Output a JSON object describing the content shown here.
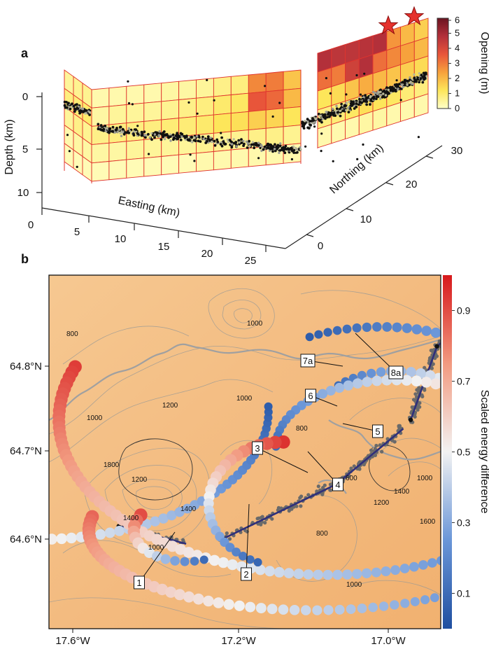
{
  "panels": {
    "a": {
      "letter": "a",
      "depth_label": "Depth (km)",
      "depth_ticks": [
        "0",
        "5",
        "10"
      ],
      "easting_label": "Easting (km)",
      "easting_ticks": [
        "0",
        "5",
        "10",
        "15",
        "20",
        "25"
      ],
      "northing_label": "Northing (km)",
      "northing_ticks": [
        "0",
        "10",
        "20",
        "30"
      ],
      "colorbar": {
        "label": "Opening (m)",
        "ticks": [
          "6",
          "5",
          "4",
          "3",
          "2",
          "1",
          "0"
        ],
        "range": [
          0,
          6
        ],
        "colors": [
          "#ffffc8",
          "#fde65a",
          "#f7a23c",
          "#e8553a",
          "#b3303a",
          "#6b1420"
        ]
      }
    },
    "b": {
      "letter": "b",
      "x_ticks": [
        "17.6°W",
        "17.2°W",
        "17.0°W"
      ],
      "y_ticks": [
        "64.8°N",
        "64.7°N",
        "64.6°N"
      ],
      "colorbar": {
        "label": "Scaled energy difference",
        "ticks": [
          "0.9",
          "0.7",
          "0.5",
          "0.3",
          "0.1"
        ],
        "range": [
          0,
          1
        ],
        "colors": [
          "#1f4fa0",
          "#6a96d8",
          "#f2f2f2",
          "#f29a80",
          "#d7191c"
        ]
      },
      "contour_labels": [
        "800",
        "1000",
        "1000",
        "1200",
        "1000",
        "1800",
        "1200",
        "1400",
        "1400",
        "1000",
        "800",
        "600",
        "1200",
        "1400",
        "1000",
        "1600",
        "800",
        "1000"
      ],
      "callouts": [
        "1",
        "2",
        "3",
        "4",
        "5",
        "6",
        "7a",
        "8a"
      ]
    }
  },
  "chart_data": [
    {
      "type": "heatmap",
      "panel": "a",
      "xlabel": "Easting (km)",
      "ylabel": "Depth (km)",
      "zlabel": "Northing (km)",
      "xlim": [
        0,
        27
      ],
      "zlim": [
        0,
        30
      ],
      "ylim": [
        10,
        0
      ],
      "colorbar_label": "Opening (m)",
      "colorbar_range": [
        0,
        6
      ],
      "segments": [
        {
          "name": "segment-1",
          "rows": [
            [
              0.5,
              0.6,
              0.6
            ],
            [
              0.8,
              0.9,
              1.0
            ],
            [
              0.5,
              0.7,
              0.6
            ],
            [
              0.3,
              0.4,
              0.4
            ],
            [
              0.2,
              0.2,
              0.2
            ]
          ]
        },
        {
          "name": "segment-2",
          "rows": [
            [
              0.3,
              0.3,
              0.3,
              0.3,
              0.4,
              0.4,
              0.5,
              0.7,
              0.8,
              2.8,
              3.0,
              1.8
            ],
            [
              0.4,
              0.5,
              0.5,
              0.5,
              0.6,
              0.7,
              0.8,
              1.0,
              1.1,
              3.6,
              3.3,
              2.0
            ],
            [
              0.7,
              0.8,
              0.8,
              0.8,
              0.9,
              0.9,
              1.0,
              1.2,
              1.3,
              1.6,
              1.5,
              1.2
            ],
            [
              0.4,
              0.4,
              0.5,
              0.5,
              0.5,
              0.5,
              0.6,
              0.6,
              0.6,
              0.7,
              0.7,
              0.6
            ],
            [
              0.2,
              0.2,
              0.2,
              0.2,
              0.2,
              0.2,
              0.3,
              0.3,
              0.3,
              0.3,
              0.3,
              0.3
            ]
          ]
        },
        {
          "name": "segment-3",
          "rows": [
            [
              4.8,
              4.6,
              4.6,
              4.7,
              4.8,
              2.6,
              2.0,
              1.6
            ],
            [
              3.2,
              3.0,
              4.2,
              4.8,
              3.2,
              2.8,
              2.4,
              2.0
            ],
            [
              1.2,
              1.4,
              1.8,
              2.2,
              2.0,
              1.8,
              1.6,
              1.4
            ],
            [
              0.8,
              0.9,
              1.1,
              1.3,
              1.2,
              1.1,
              0.9,
              0.8
            ],
            [
              0.3,
              0.3,
              0.3,
              0.4,
              0.4,
              0.3,
              0.3,
              0.3
            ]
          ]
        }
      ]
    },
    {
      "type": "scatter",
      "panel": "b",
      "x_ticks": [
        "17.6°W",
        "17.2°W",
        "17.0°W"
      ],
      "y_ticks": [
        "64.8°N",
        "64.7°N",
        "64.6°N"
      ],
      "colorbar_label": "Scaled energy difference",
      "colorbar_range": [
        0,
        1
      ],
      "callouts": [
        "1",
        "2",
        "3",
        "4",
        "5",
        "6",
        "7a",
        "8a"
      ],
      "arcs": [
        {
          "cx": -17.47,
          "cy": 64.745,
          "r_lon": 0.31,
          "r_lat": 0.145,
          "a0": 188,
          "a1": 362,
          "e0": 0.96,
          "e1": 0.05
        },
        {
          "cx": -17.08,
          "cy": 64.735,
          "r_lon": 0.36,
          "r_lat": 0.175,
          "a0": 160,
          "a1": 330,
          "e0": 0.93,
          "e1": 0.08
        },
        {
          "cx": -17.01,
          "cy": 64.755,
          "r_lon": 0.19,
          "r_lat": 0.085,
          "a0": 350,
          "a1": 120,
          "e0": 0.55,
          "e1": 0.05
        },
        {
          "cx": -16.99,
          "cy": 64.745,
          "r_lon": 0.1,
          "r_lat": 0.045,
          "a0": 330,
          "a1": 140,
          "e0": 0.85,
          "e1": 0.1
        },
        {
          "cx": -16.99,
          "cy": 64.705,
          "r_lon": 0.16,
          "r_lat": 0.075,
          "a0": 340,
          "a1": 180,
          "e0": 0.9,
          "e1": 0.1
        },
        {
          "cx": -17.14,
          "cy": 64.64,
          "r_lon": 0.1,
          "r_lat": 0.07,
          "a0": 90,
          "a1": 250,
          "e0": 0.95,
          "e1": 0.08
        },
        {
          "cx": -17.27,
          "cy": 64.61,
          "r_lon": 0.07,
          "r_lat": 0.035,
          "a0": 150,
          "a1": 290,
          "e0": 0.9,
          "e1": 0.1
        },
        {
          "cx": -17.1,
          "cy": 64.61,
          "r_lon": 0.3,
          "r_lat": 0.09,
          "a0": 170,
          "a1": 320,
          "e0": 0.85,
          "e1": 0.2
        }
      ],
      "dikes": [
        {
          "from": [
            -17.36,
            64.615
          ],
          "to": [
            -17.27,
            64.595
          ]
        },
        {
          "from": [
            -17.22,
            64.601
          ],
          "to": [
            -17.07,
            64.662
          ]
        },
        {
          "from": [
            -17.07,
            64.662
          ],
          "to": [
            -16.98,
            64.725
          ]
        },
        {
          "from": [
            -16.97,
            64.735
          ],
          "to": [
            -16.935,
            64.818
          ]
        },
        {
          "from": [
            -16.935,
            64.818
          ],
          "to": [
            -16.86,
            64.868
          ]
        }
      ],
      "seismicity_note": "grey dots along dike path"
    }
  ]
}
